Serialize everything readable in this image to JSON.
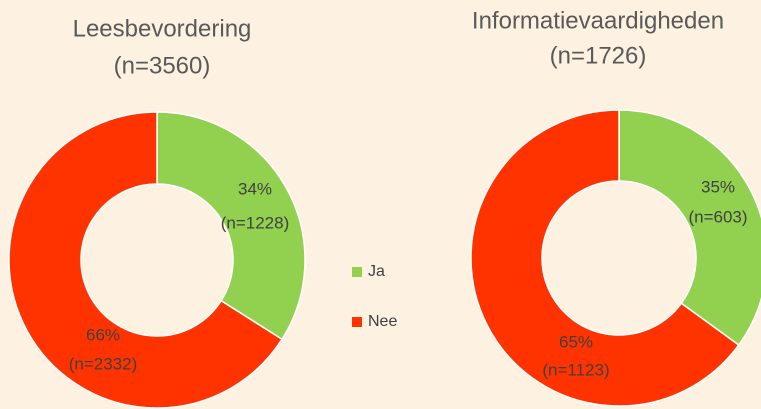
{
  "chart_data": [
    {
      "type": "donut",
      "title": "Leesbevordering",
      "subtitle": "(n=3560)",
      "categories": [
        "Ja",
        "Nee"
      ],
      "colors": [
        "#92d050",
        "#ff3300"
      ],
      "values": [
        34,
        66
      ],
      "value_labels": [
        "34%",
        "66%"
      ],
      "counts": [
        1228,
        2332
      ],
      "count_labels": [
        "(n=1228)",
        "(n=2332)"
      ],
      "legend": "right"
    },
    {
      "type": "donut",
      "title": "Informatievaardigheden",
      "subtitle": "(n=1726)",
      "categories": [
        "Ja",
        "Nee"
      ],
      "colors": [
        "#92d050",
        "#ff3300"
      ],
      "values": [
        35,
        65
      ],
      "value_labels": [
        "35%",
        "65%"
      ],
      "counts": [
        603,
        1123
      ],
      "count_labels": [
        "(n=603)",
        "(n=1123)"
      ]
    }
  ]
}
